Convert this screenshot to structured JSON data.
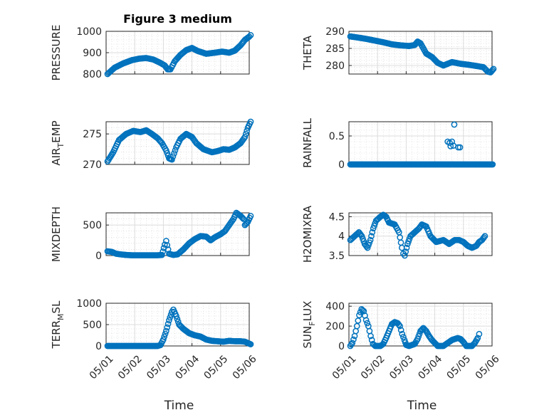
{
  "chart_data": [
    {
      "type": "scatter",
      "title": "Figure 3 medium",
      "ylabel": "PRESSURE",
      "ylim": [
        800,
        1000
      ],
      "yticks": [
        800,
        900,
        1000
      ],
      "xlim": [
        0,
        5
      ],
      "xlabel": "",
      "keypoints": [
        [
          0.05,
          800
        ],
        [
          0.3,
          830
        ],
        [
          0.6,
          850
        ],
        [
          0.9,
          865
        ],
        [
          1.15,
          872
        ],
        [
          1.4,
          875
        ],
        [
          1.65,
          868
        ],
        [
          1.9,
          852
        ],
        [
          2.05,
          840
        ],
        [
          2.15,
          822
        ],
        [
          2.25,
          822
        ],
        [
          2.4,
          860
        ],
        [
          2.6,
          890
        ],
        [
          2.8,
          912
        ],
        [
          3.0,
          922
        ],
        [
          3.2,
          908
        ],
        [
          3.5,
          895
        ],
        [
          3.8,
          900
        ],
        [
          4.05,
          905
        ],
        [
          4.3,
          900
        ],
        [
          4.5,
          910
        ],
        [
          4.7,
          935
        ],
        [
          4.85,
          960
        ],
        [
          5.0,
          975
        ],
        [
          5.05,
          982
        ]
      ]
    },
    {
      "type": "scatter",
      "title": "",
      "ylabel": "THETA",
      "ylim": [
        277.5,
        290
      ],
      "yticks": [
        280,
        285,
        290
      ],
      "xlim": [
        0,
        5
      ],
      "xlabel": "",
      "keypoints": [
        [
          0.05,
          288.5
        ],
        [
          0.3,
          288.2
        ],
        [
          0.6,
          287.8
        ],
        [
          0.9,
          287.3
        ],
        [
          1.2,
          286.8
        ],
        [
          1.5,
          286.2
        ],
        [
          1.8,
          285.9
        ],
        [
          2.1,
          285.7
        ],
        [
          2.3,
          286.0
        ],
        [
          2.4,
          287.0
        ],
        [
          2.5,
          286.5
        ],
        [
          2.7,
          283.5
        ],
        [
          2.9,
          282.5
        ],
        [
          3.1,
          280.8
        ],
        [
          3.3,
          280.0
        ],
        [
          3.6,
          281.0
        ],
        [
          3.9,
          280.5
        ],
        [
          4.2,
          280.2
        ],
        [
          4.5,
          279.8
        ],
        [
          4.7,
          279.5
        ],
        [
          4.85,
          278.2
        ],
        [
          4.95,
          278.0
        ],
        [
          5.05,
          279.0
        ]
      ]
    },
    {
      "type": "scatter",
      "title": "",
      "ylabel": "AIR_TEMP",
      "ylim": [
        270,
        277
      ],
      "yticks": [
        270,
        275
      ],
      "xlim": [
        0,
        5
      ],
      "xlabel": "",
      "keypoints": [
        [
          0.05,
          270.5
        ],
        [
          0.25,
          272.0
        ],
        [
          0.45,
          274.0
        ],
        [
          0.7,
          275.0
        ],
        [
          0.95,
          275.5
        ],
        [
          1.2,
          275.3
        ],
        [
          1.4,
          275.6
        ],
        [
          1.6,
          275.0
        ],
        [
          1.8,
          274.3
        ],
        [
          1.95,
          273.5
        ],
        [
          2.1,
          272.3
        ],
        [
          2.2,
          271.0
        ],
        [
          2.3,
          270.8
        ],
        [
          2.45,
          272.8
        ],
        [
          2.6,
          274.2
        ],
        [
          2.8,
          275.0
        ],
        [
          3.0,
          274.5
        ],
        [
          3.15,
          273.5
        ],
        [
          3.4,
          272.5
        ],
        [
          3.7,
          272.0
        ],
        [
          3.9,
          272.2
        ],
        [
          4.1,
          272.5
        ],
        [
          4.3,
          272.4
        ],
        [
          4.5,
          272.8
        ],
        [
          4.7,
          273.5
        ],
        [
          4.85,
          274.5
        ],
        [
          4.95,
          276.0
        ],
        [
          5.05,
          277.0
        ]
      ]
    },
    {
      "type": "scatter",
      "title": "",
      "ylabel": "RAINFALL",
      "ylim": [
        0,
        0.75
      ],
      "yticks": [
        0,
        0.5
      ],
      "xlim": [
        0,
        5
      ],
      "xlabel": "",
      "extra_points": [
        [
          3.45,
          0.4
        ],
        [
          3.52,
          0.38
        ],
        [
          3.6,
          0.4
        ],
        [
          3.55,
          0.32
        ],
        [
          3.65,
          0.33
        ],
        [
          3.68,
          0.7
        ],
        [
          3.82,
          0.3
        ],
        [
          3.88,
          0.3
        ]
      ],
      "baseline_range": [
        0.05,
        5.05
      ]
    },
    {
      "type": "scatter",
      "title": "",
      "ylabel": "MIXDEPTH",
      "ylim": [
        0,
        700
      ],
      "yticks": [
        0,
        500
      ],
      "xlim": [
        0,
        5
      ],
      "xlabel": "",
      "keypoints": [
        [
          0.05,
          70
        ],
        [
          0.2,
          60
        ],
        [
          0.35,
          30
        ],
        [
          0.5,
          20
        ],
        [
          0.7,
          10
        ],
        [
          0.9,
          5
        ],
        [
          1.2,
          5
        ],
        [
          1.5,
          5
        ],
        [
          1.8,
          5
        ],
        [
          1.95,
          10
        ],
        [
          2.05,
          180
        ],
        [
          2.1,
          240
        ],
        [
          2.2,
          30
        ],
        [
          2.35,
          10
        ],
        [
          2.5,
          20
        ],
        [
          2.7,
          100
        ],
        [
          2.9,
          200
        ],
        [
          3.1,
          270
        ],
        [
          3.3,
          320
        ],
        [
          3.5,
          310
        ],
        [
          3.65,
          250
        ],
        [
          3.8,
          300
        ],
        [
          4.0,
          350
        ],
        [
          4.15,
          400
        ],
        [
          4.3,
          500
        ],
        [
          4.45,
          600
        ],
        [
          4.55,
          700
        ],
        [
          4.7,
          650
        ],
        [
          4.8,
          600
        ],
        [
          4.85,
          500
        ],
        [
          4.95,
          550
        ],
        [
          5.05,
          650
        ]
      ]
    },
    {
      "type": "scatter",
      "title": "",
      "ylabel": "H2OMIXRA",
      "ylim": [
        3.5,
        4.6
      ],
      "yticks": [
        3.5,
        4,
        4.5
      ],
      "xlim": [
        0,
        5
      ],
      "xlabel": "",
      "keypoints": [
        [
          0.05,
          3.9
        ],
        [
          0.2,
          4.0
        ],
        [
          0.35,
          4.1
        ],
        [
          0.45,
          4.0
        ],
        [
          0.55,
          3.8
        ],
        [
          0.65,
          3.7
        ],
        [
          0.75,
          3.9
        ],
        [
          0.85,
          4.2
        ],
        [
          0.95,
          4.4
        ],
        [
          1.1,
          4.5
        ],
        [
          1.2,
          4.55
        ],
        [
          1.3,
          4.5
        ],
        [
          1.4,
          4.35
        ],
        [
          1.6,
          4.3
        ],
        [
          1.75,
          4.1
        ],
        [
          1.85,
          3.7
        ],
        [
          1.9,
          3.55
        ],
        [
          1.95,
          3.5
        ],
        [
          2.05,
          3.8
        ],
        [
          2.15,
          4.0
        ],
        [
          2.3,
          4.1
        ],
        [
          2.45,
          4.2
        ],
        [
          2.55,
          4.3
        ],
        [
          2.7,
          4.25
        ],
        [
          2.85,
          4.0
        ],
        [
          3.05,
          3.85
        ],
        [
          3.3,
          3.9
        ],
        [
          3.5,
          3.8
        ],
        [
          3.7,
          3.9
        ],
        [
          3.85,
          3.9
        ],
        [
          4.0,
          3.85
        ],
        [
          4.15,
          3.75
        ],
        [
          4.3,
          3.7
        ],
        [
          4.45,
          3.75
        ],
        [
          4.55,
          3.85
        ],
        [
          4.65,
          3.9
        ],
        [
          4.75,
          4.0
        ]
      ]
    },
    {
      "type": "scatter",
      "title": "",
      "ylabel": "TERR_MSL",
      "ylim": [
        0,
        1000
      ],
      "yticks": [
        0,
        500,
        1000
      ],
      "xlim": [
        0,
        5
      ],
      "xlabel": "Time",
      "xticks": [
        0,
        1,
        2,
        3,
        4,
        5
      ],
      "xticklabels": [
        "05/01",
        "05/02",
        "05/03",
        "05/04",
        "05/05",
        "05/06"
      ],
      "keypoints": [
        [
          0.05,
          0
        ],
        [
          0.5,
          0
        ],
        [
          1.0,
          0
        ],
        [
          1.5,
          0
        ],
        [
          1.8,
          0
        ],
        [
          1.9,
          20
        ],
        [
          2.0,
          150
        ],
        [
          2.1,
          350
        ],
        [
          2.2,
          600
        ],
        [
          2.3,
          800
        ],
        [
          2.35,
          850
        ],
        [
          2.45,
          700
        ],
        [
          2.55,
          500
        ],
        [
          2.7,
          400
        ],
        [
          2.9,
          300
        ],
        [
          3.1,
          250
        ],
        [
          3.3,
          220
        ],
        [
          3.5,
          150
        ],
        [
          3.7,
          120
        ],
        [
          3.9,
          110
        ],
        [
          4.1,
          100
        ],
        [
          4.3,
          120
        ],
        [
          4.5,
          110
        ],
        [
          4.7,
          110
        ],
        [
          4.85,
          100
        ],
        [
          5.05,
          40
        ]
      ]
    },
    {
      "type": "scatter",
      "title": "",
      "ylabel": "SUN_FLUX",
      "ylim": [
        0,
        430
      ],
      "yticks": [
        0,
        200,
        400
      ],
      "xlim": [
        0,
        5
      ],
      "xlabel": "Time",
      "xticks": [
        0,
        1,
        2,
        3,
        4,
        5
      ],
      "xticklabels": [
        "05/01",
        "05/02",
        "05/03",
        "05/04",
        "05/05",
        "05/06"
      ],
      "keypoints": [
        [
          0.05,
          0
        ],
        [
          0.12,
          30
        ],
        [
          0.2,
          100
        ],
        [
          0.28,
          200
        ],
        [
          0.36,
          310
        ],
        [
          0.44,
          370
        ],
        [
          0.52,
          350
        ],
        [
          0.6,
          260
        ],
        [
          0.68,
          200
        ],
        [
          0.76,
          100
        ],
        [
          0.84,
          20
        ],
        [
          0.92,
          0
        ],
        [
          1.1,
          0
        ],
        [
          1.2,
          20
        ],
        [
          1.3,
          80
        ],
        [
          1.4,
          150
        ],
        [
          1.5,
          220
        ],
        [
          1.6,
          240
        ],
        [
          1.7,
          230
        ],
        [
          1.78,
          200
        ],
        [
          1.86,
          120
        ],
        [
          1.94,
          60
        ],
        [
          2.0,
          10
        ],
        [
          2.1,
          0
        ],
        [
          2.3,
          20
        ],
        [
          2.4,
          70
        ],
        [
          2.5,
          150
        ],
        [
          2.6,
          180
        ],
        [
          2.7,
          150
        ],
        [
          2.8,
          100
        ],
        [
          2.9,
          60
        ],
        [
          3.0,
          30
        ],
        [
          3.1,
          0
        ],
        [
          3.3,
          0
        ],
        [
          3.4,
          20
        ],
        [
          3.5,
          40
        ],
        [
          3.6,
          60
        ],
        [
          3.7,
          70
        ],
        [
          3.8,
          80
        ],
        [
          3.9,
          70
        ],
        [
          4.0,
          40
        ],
        [
          4.1,
          0
        ],
        [
          4.2,
          0
        ],
        [
          4.3,
          0
        ],
        [
          4.4,
          30
        ],
        [
          4.5,
          80
        ],
        [
          4.55,
          120
        ]
      ]
    }
  ]
}
